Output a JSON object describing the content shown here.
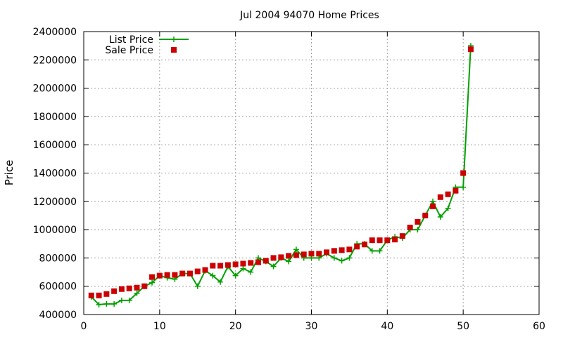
{
  "chart_data": {
    "type": "line",
    "title": "Jul 2004 94070 Home Prices",
    "xlabel": "",
    "ylabel": "Price",
    "xlim": [
      0,
      60
    ],
    "ylim": [
      400000,
      2400000
    ],
    "xticks": [
      0,
      10,
      20,
      30,
      40,
      50,
      60
    ],
    "yticks": [
      400000,
      600000,
      800000,
      1000000,
      1200000,
      1400000,
      1600000,
      1800000,
      2000000,
      2200000,
      2400000
    ],
    "grid": true,
    "legend_position": "top-left",
    "x": [
      1,
      2,
      3,
      4,
      5,
      6,
      7,
      8,
      9,
      10,
      11,
      12,
      13,
      14,
      15,
      16,
      17,
      18,
      19,
      20,
      21,
      22,
      23,
      24,
      25,
      26,
      27,
      28,
      29,
      30,
      31,
      32,
      33,
      34,
      35,
      36,
      37,
      38,
      39,
      40,
      41,
      42,
      43,
      44,
      45,
      46,
      47,
      48,
      49,
      50,
      51
    ],
    "series": [
      {
        "name": "List Price",
        "style": "line+cross",
        "color": "#00a000",
        "values": [
          525000,
          470000,
          475000,
          475000,
          500000,
          500000,
          550000,
          600000,
          625000,
          675000,
          660000,
          650000,
          690000,
          690000,
          600000,
          710000,
          675000,
          630000,
          740000,
          675000,
          725000,
          700000,
          800000,
          775000,
          740000,
          800000,
          775000,
          860000,
          800000,
          800000,
          800000,
          830000,
          800000,
          780000,
          800000,
          900000,
          900000,
          850000,
          850000,
          925000,
          950000,
          940000,
          1000000,
          1000000,
          1100000,
          1200000,
          1090000,
          1150000,
          1300000,
          1300000,
          2300000
        ]
      },
      {
        "name": "Sale Price",
        "style": "square",
        "color": "#cc0000",
        "values": [
          535000,
          535000,
          545000,
          565000,
          580000,
          585000,
          590000,
          600000,
          665000,
          675000,
          680000,
          680000,
          690000,
          690000,
          705000,
          715000,
          745000,
          745000,
          750000,
          755000,
          760000,
          765000,
          770000,
          780000,
          800000,
          805000,
          815000,
          820000,
          825000,
          830000,
          830000,
          840000,
          850000,
          855000,
          860000,
          880000,
          895000,
          925000,
          925000,
          925000,
          930000,
          955000,
          1015000,
          1055000,
          1100000,
          1165000,
          1230000,
          1250000,
          1275000,
          1400000,
          2275000
        ]
      }
    ]
  }
}
